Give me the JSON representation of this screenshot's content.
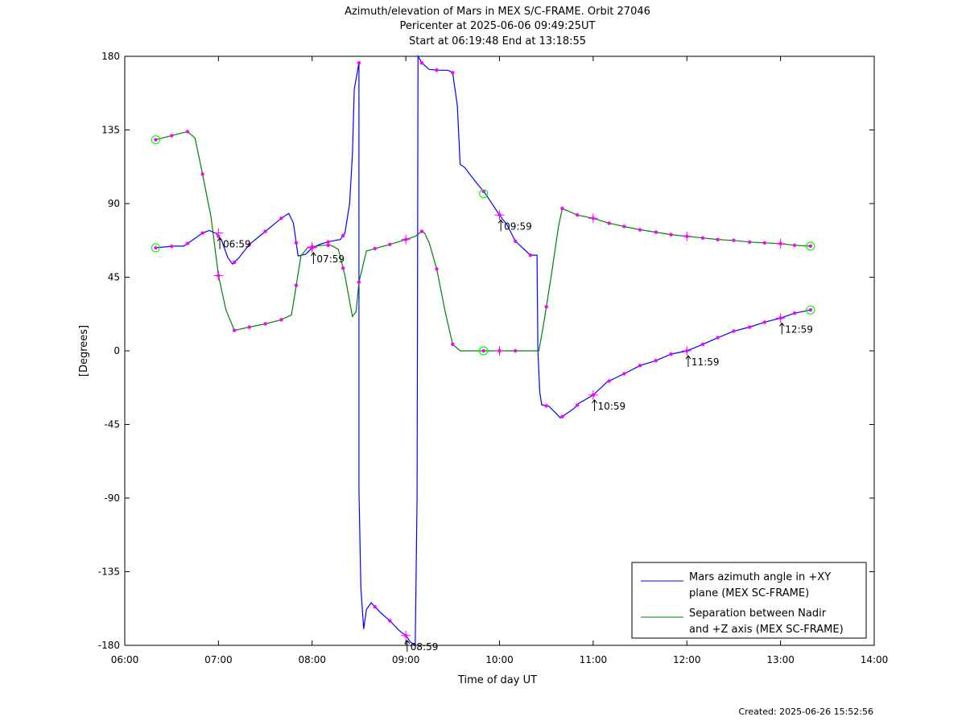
{
  "chart_data": {
    "type": "line",
    "title": "Azimuth/elevation of Mars in MEX S/C-FRAME.  Orbit 27046",
    "subtitle_1": "Pericenter at 2025-06-06 09:49:25UT",
    "subtitle_2": "Start at 06:19:48 End at 13:18:55",
    "xlabel": "Time of day UT",
    "ylabel": "[Degrees]",
    "xlim": [
      "06:00",
      "14:00"
    ],
    "ylim": [
      -180,
      180
    ],
    "x_ticks": [
      "06:00",
      "07:00",
      "08:00",
      "09:00",
      "10:00",
      "11:00",
      "12:00",
      "13:00",
      "14:00"
    ],
    "y_ticks": [
      180,
      135,
      90,
      45,
      0,
      -45,
      -90,
      -135,
      -180
    ],
    "y_tick_labels": [
      "180",
      "135",
      "90",
      "45",
      "0",
      "-45",
      "-90",
      "-135",
      "-180"
    ],
    "grid": false,
    "legend_position": "bottom-right",
    "series": [
      {
        "name": "Mars azimuth angle in +XY plane (MEX SC-FRAME)",
        "legend_line1": "Mars azimuth angle in +XY",
        "legend_line2": "plane (MEX SC-FRAME)",
        "color": "#0000ff",
        "points": [
          [
            6.33,
            63
          ],
          [
            6.43,
            63.5
          ],
          [
            6.53,
            64
          ],
          [
            6.63,
            64
          ],
          [
            6.73,
            68
          ],
          [
            6.83,
            72
          ],
          [
            6.9,
            73.5
          ],
          [
            6.97,
            72
          ],
          [
            7.03,
            68
          ],
          [
            7.1,
            57
          ],
          [
            7.15,
            53
          ],
          [
            7.22,
            57
          ],
          [
            7.33,
            65
          ],
          [
            7.5,
            73
          ],
          [
            7.67,
            81
          ],
          [
            7.75,
            84
          ],
          [
            7.8,
            78
          ],
          [
            7.85,
            58
          ],
          [
            7.93,
            59
          ],
          [
            8.0,
            63
          ],
          [
            8.1,
            65.5
          ],
          [
            8.2,
            67
          ],
          [
            8.3,
            68
          ],
          [
            8.35,
            72
          ],
          [
            8.4,
            90
          ],
          [
            8.43,
            120
          ],
          [
            8.45,
            160
          ],
          [
            8.5,
            176
          ],
          [
            8.5,
            -85
          ],
          [
            8.52,
            -145
          ],
          [
            8.55,
            -170
          ],
          [
            8.58,
            -158
          ],
          [
            8.63,
            -154
          ],
          [
            8.73,
            -160
          ],
          [
            8.83,
            -165
          ],
          [
            8.93,
            -171
          ],
          [
            9.0,
            -174
          ],
          [
            9.05,
            -178
          ],
          [
            9.1,
            -180
          ],
          [
            9.12,
            -90
          ],
          [
            9.13,
            180
          ],
          [
            9.17,
            176
          ],
          [
            9.25,
            172
          ],
          [
            9.35,
            171.5
          ],
          [
            9.45,
            171.5
          ],
          [
            9.5,
            170
          ],
          [
            9.55,
            150
          ],
          [
            9.58,
            114
          ],
          [
            9.63,
            112
          ],
          [
            9.75,
            103
          ],
          [
            9.85,
            96
          ],
          [
            10.0,
            83
          ],
          [
            10.08,
            77
          ],
          [
            10.17,
            67
          ],
          [
            10.33,
            58.5
          ],
          [
            10.4,
            58.5
          ],
          [
            10.41,
            0
          ],
          [
            10.43,
            -25
          ],
          [
            10.45,
            -33
          ],
          [
            10.53,
            -34
          ],
          [
            10.6,
            -38
          ],
          [
            10.65,
            -41
          ],
          [
            10.8,
            -35
          ],
          [
            10.85,
            -32
          ],
          [
            11.0,
            -27
          ],
          [
            11.15,
            -19
          ],
          [
            11.33,
            -14
          ],
          [
            11.5,
            -9
          ],
          [
            11.67,
            -6
          ],
          [
            11.83,
            -2
          ],
          [
            12.0,
            0
          ],
          [
            12.17,
            4
          ],
          [
            12.33,
            8
          ],
          [
            12.5,
            12
          ],
          [
            12.67,
            14.5
          ],
          [
            12.83,
            17.5
          ],
          [
            13.0,
            20
          ],
          [
            13.15,
            23
          ],
          [
            13.32,
            25
          ]
        ],
        "markers_x": [
          6.33,
          6.5,
          6.67,
          6.83,
          7.0,
          7.17,
          7.33,
          7.5,
          7.67,
          7.83,
          8.0,
          8.17,
          8.33,
          8.5,
          8.67,
          8.83,
          9.0,
          9.17,
          9.33,
          9.5,
          9.83,
          10.0,
          10.17,
          10.33,
          10.5,
          10.67,
          10.83,
          11.0,
          11.17,
          11.33,
          11.5,
          11.67,
          11.83,
          12.0,
          12.17,
          12.33,
          12.5,
          12.67,
          12.83,
          13.0,
          13.15,
          13.32
        ]
      },
      {
        "name": "Separation between Nadir and +Z axis (MEX SC-FRAME)",
        "legend_line1": "Separation between Nadir",
        "legend_line2": "and +Z axis (MEX SC-FRAME)",
        "color": "#008000",
        "points": [
          [
            6.33,
            129
          ],
          [
            6.5,
            131.5
          ],
          [
            6.6,
            133
          ],
          [
            6.67,
            134
          ],
          [
            6.75,
            130
          ],
          [
            6.83,
            108
          ],
          [
            6.92,
            82
          ],
          [
            7.0,
            46
          ],
          [
            7.08,
            25
          ],
          [
            7.17,
            12.5
          ],
          [
            7.33,
            14.5
          ],
          [
            7.5,
            16.5
          ],
          [
            7.67,
            19
          ],
          [
            7.78,
            22
          ],
          [
            7.83,
            40
          ],
          [
            7.88,
            58
          ],
          [
            7.95,
            63
          ],
          [
            8.1,
            64.5
          ],
          [
            8.2,
            64.5
          ],
          [
            8.28,
            62
          ],
          [
            8.35,
            46
          ],
          [
            8.43,
            21
          ],
          [
            8.47,
            24
          ],
          [
            8.5,
            42
          ],
          [
            8.58,
            61
          ],
          [
            8.67,
            62.5
          ],
          [
            8.83,
            65
          ],
          [
            9.0,
            68
          ],
          [
            9.1,
            70
          ],
          [
            9.17,
            73
          ],
          [
            9.2,
            72
          ],
          [
            9.25,
            66
          ],
          [
            9.33,
            50
          ],
          [
            9.42,
            24
          ],
          [
            9.5,
            4
          ],
          [
            9.58,
            0
          ],
          [
            9.83,
            0
          ],
          [
            10.0,
            0
          ],
          [
            10.17,
            0
          ],
          [
            10.33,
            0
          ],
          [
            10.42,
            0
          ],
          [
            10.47,
            16
          ],
          [
            10.55,
            45
          ],
          [
            10.63,
            76
          ],
          [
            10.67,
            87
          ],
          [
            10.83,
            83
          ],
          [
            11.0,
            81
          ],
          [
            11.17,
            78
          ],
          [
            11.33,
            76
          ],
          [
            11.5,
            74
          ],
          [
            11.67,
            72.5
          ],
          [
            11.83,
            71
          ],
          [
            12.0,
            70
          ],
          [
            12.17,
            69
          ],
          [
            12.33,
            68
          ],
          [
            12.5,
            67.5
          ],
          [
            12.67,
            66.5
          ],
          [
            12.83,
            66
          ],
          [
            13.0,
            65.5
          ],
          [
            13.15,
            64.5
          ],
          [
            13.32,
            64
          ]
        ],
        "markers_x": [
          6.33,
          6.5,
          6.67,
          6.83,
          7.0,
          7.17,
          7.33,
          7.5,
          7.67,
          7.83,
          8.0,
          8.17,
          8.33,
          8.5,
          8.67,
          8.83,
          9.0,
          9.17,
          9.33,
          9.5,
          9.83,
          10.0,
          10.17,
          10.5,
          10.67,
          10.83,
          11.0,
          11.17,
          11.33,
          11.5,
          11.67,
          11.83,
          12.0,
          12.17,
          12.33,
          12.5,
          12.67,
          12.83,
          13.0,
          13.15,
          13.32
        ]
      }
    ],
    "marker_color": "#ff00ff",
    "circle_marker_color": "#00ff00",
    "circle_markers": [
      {
        "series": 0,
        "x": 6.33,
        "y": 63
      },
      {
        "series": 0,
        "x": 13.32,
        "y": 25
      },
      {
        "series": 1,
        "x": 6.33,
        "y": 129
      },
      {
        "series": 1,
        "x": 9.83,
        "y": 0
      },
      {
        "series": 1,
        "x": 13.32,
        "y": 64
      },
      {
        "series": 0,
        "x": 9.83,
        "y": 96
      }
    ],
    "hour_markers": [
      {
        "x": 7.0,
        "y_az": 72,
        "y_sep": 46
      },
      {
        "x": 8.0,
        "y_az": 63,
        "y_sep": 63.5
      },
      {
        "x": 9.0,
        "y_az": -174,
        "y_sep": 68
      },
      {
        "x": 10.0,
        "y_az": 83,
        "y_sep": 0
      },
      {
        "x": 11.0,
        "y_az": -27,
        "y_sep": 81
      },
      {
        "x": 12.0,
        "y_az": 0,
        "y_sep": 70
      },
      {
        "x": 13.0,
        "y_az": 20,
        "y_sep": 65.5
      }
    ],
    "annotations": [
      {
        "label": "06:59",
        "x": 6.98,
        "y": 70
      },
      {
        "label": "07:59",
        "x": 7.98,
        "y": 61
      },
      {
        "label": "08:59",
        "x": 8.98,
        "y": -176
      },
      {
        "label": "09:59",
        "x": 9.98,
        "y": 81
      },
      {
        "label": "10:59",
        "x": 10.98,
        "y": -29
      },
      {
        "label": "11:59",
        "x": 11.98,
        "y": -2
      },
      {
        "label": "12:59",
        "x": 12.98,
        "y": 18
      }
    ],
    "footer": "Created: 2025-06-26 15:52:56"
  }
}
